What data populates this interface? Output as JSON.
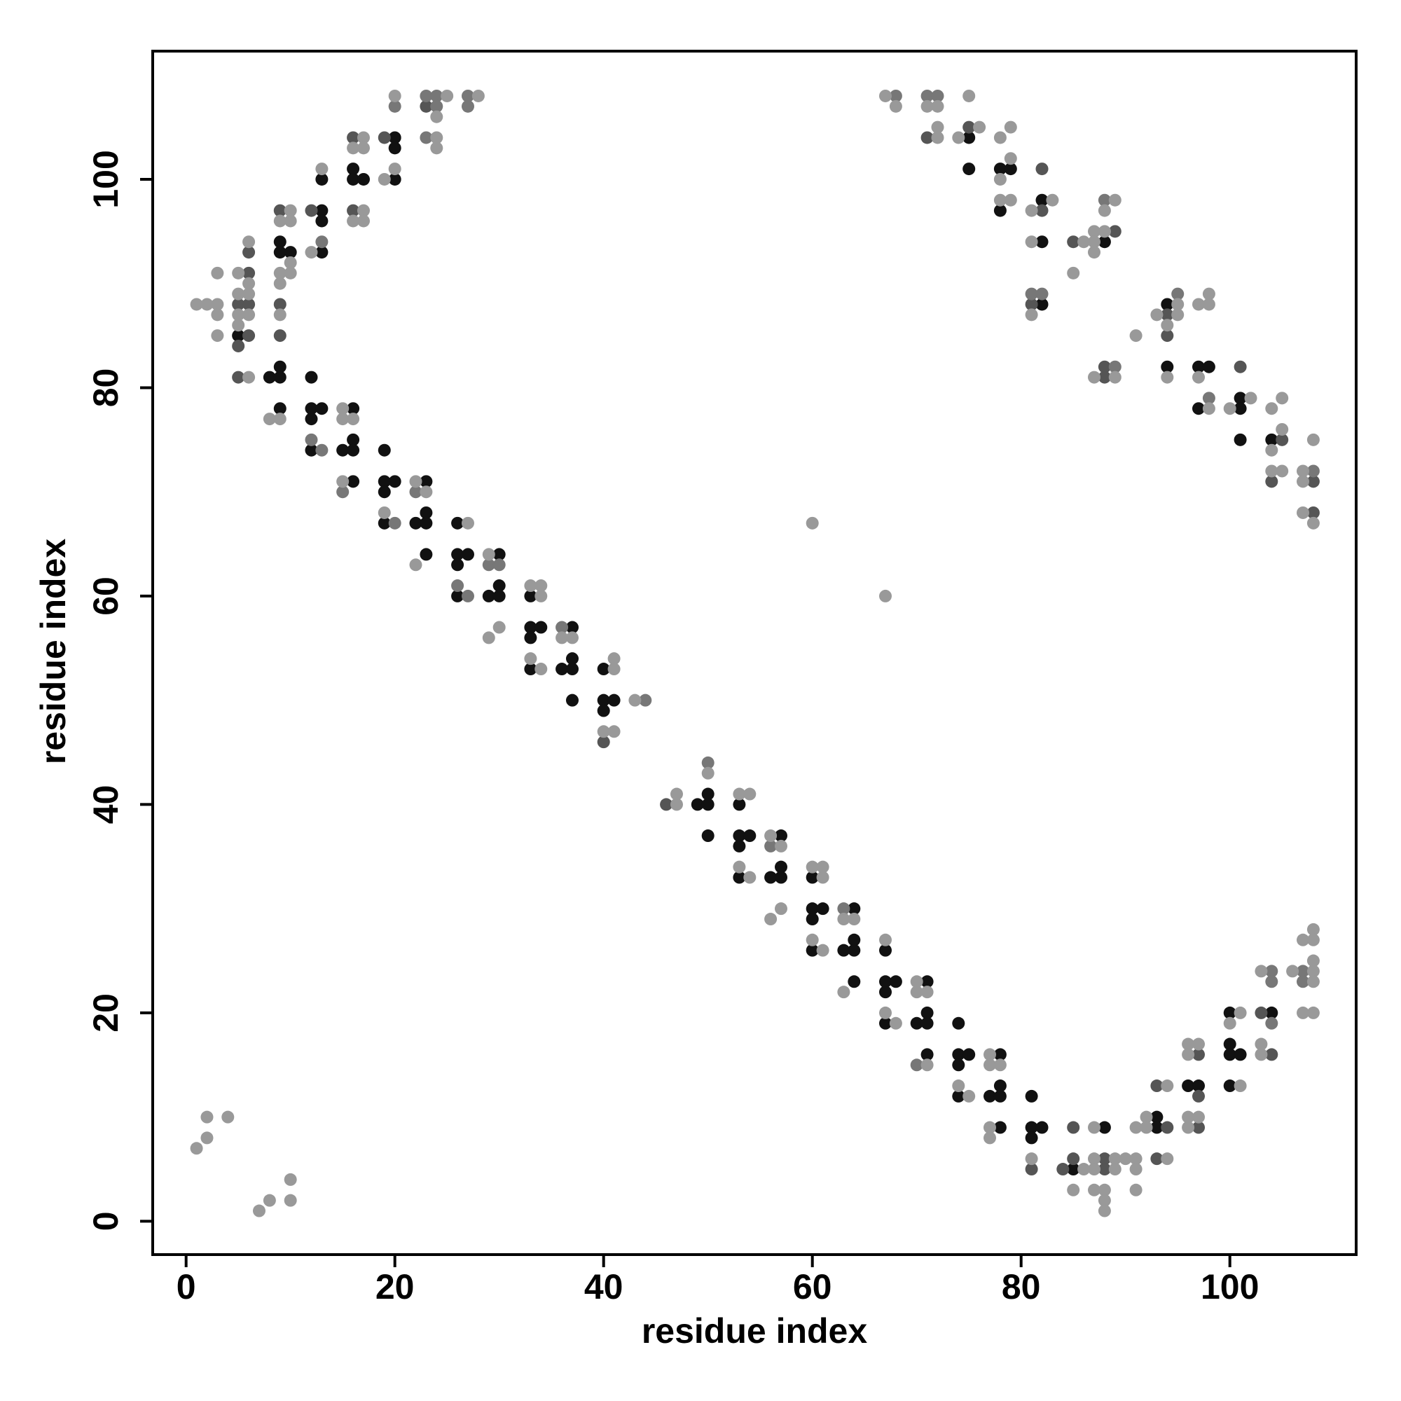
{
  "chart_data": {
    "type": "scatter",
    "x_label": "residue index",
    "y_label": "residue index",
    "xlim": [
      -3.2,
      112.1
    ],
    "ylim": [
      -3.2,
      112.3
    ],
    "xticks": [
      0,
      20,
      40,
      60,
      80,
      100
    ],
    "yticks": [
      0,
      20,
      40,
      60,
      80,
      100
    ],
    "grid": false,
    "series": [
      {
        "color": "#111111",
        "x": [
          5,
          8,
          9,
          9,
          9,
          9,
          9,
          10,
          12,
          12,
          12,
          12,
          13,
          13,
          13,
          13,
          13,
          15,
          16,
          16,
          16,
          16,
          16,
          16,
          17,
          19,
          19,
          19,
          19,
          20,
          20,
          20,
          20,
          22,
          23,
          23,
          23,
          23,
          26,
          26,
          26,
          26,
          27,
          29,
          30,
          30,
          30,
          33,
          33,
          33,
          33,
          34,
          36,
          37,
          37,
          37,
          37,
          40,
          40,
          40,
          41,
          49,
          50,
          50,
          50,
          53,
          53,
          53,
          53,
          54,
          56,
          57,
          57,
          57,
          60,
          60,
          60,
          60,
          61,
          63,
          64,
          64,
          64,
          64,
          67,
          67,
          67,
          67,
          68,
          70,
          71,
          71,
          71,
          71,
          74,
          74,
          74,
          74,
          75,
          75,
          75,
          77,
          78,
          78,
          78,
          78,
          78,
          78,
          79,
          81,
          81,
          81,
          82,
          82,
          82,
          82,
          85,
          88,
          88,
          93,
          93,
          94,
          94,
          96,
          97,
          97,
          97,
          98,
          100,
          100,
          100,
          100,
          101,
          101,
          101,
          101,
          104,
          104
        ],
        "y": [
          85,
          81,
          94,
          93,
          82,
          81,
          78,
          93,
          81,
          78,
          77,
          74,
          100,
          97,
          96,
          93,
          78,
          74,
          101,
          100,
          78,
          75,
          74,
          71,
          100,
          74,
          71,
          70,
          67,
          104,
          103,
          100,
          71,
          67,
          71,
          68,
          67,
          64,
          67,
          64,
          63,
          60,
          64,
          60,
          64,
          61,
          60,
          60,
          57,
          56,
          53,
          57,
          53,
          57,
          54,
          53,
          50,
          53,
          50,
          49,
          50,
          40,
          41,
          40,
          37,
          40,
          37,
          36,
          33,
          37,
          33,
          37,
          34,
          33,
          33,
          30,
          29,
          26,
          30,
          26,
          30,
          27,
          26,
          23,
          26,
          23,
          22,
          19,
          23,
          19,
          23,
          20,
          19,
          16,
          19,
          16,
          15,
          12,
          104,
          101,
          16,
          12,
          101,
          97,
          16,
          13,
          12,
          9,
          101,
          12,
          9,
          8,
          98,
          94,
          88,
          9,
          5,
          94,
          9,
          10,
          9,
          88,
          82,
          13,
          82,
          78,
          13,
          82,
          20,
          17,
          16,
          13,
          79,
          78,
          75,
          16,
          75,
          20
        ]
      },
      {
        "color": "#555555",
        "x": [
          5,
          5,
          5,
          6,
          6,
          6,
          6,
          9,
          9,
          9,
          12,
          16,
          16,
          19,
          23,
          40,
          46,
          71,
          75,
          81,
          81,
          82,
          82,
          84,
          85,
          85,
          85,
          88,
          88,
          88,
          88,
          89,
          93,
          93,
          94,
          94,
          94,
          97,
          97,
          97,
          101,
          103,
          104,
          104,
          105,
          108,
          108
        ],
        "y": [
          88,
          84,
          81,
          93,
          91,
          88,
          85,
          97,
          88,
          85,
          97,
          104,
          97,
          104,
          107,
          46,
          40,
          104,
          105,
          88,
          5,
          101,
          97,
          5,
          94,
          9,
          6,
          82,
          81,
          6,
          5,
          95,
          13,
          6,
          87,
          85,
          9,
          16,
          12,
          9,
          82,
          20,
          71,
          16,
          75,
          71,
          68
        ]
      },
      {
        "color": "#777777",
        "x": [
          12,
          13,
          13,
          15,
          20,
          20,
          22,
          23,
          23,
          24,
          24,
          26,
          27,
          27,
          27,
          29,
          30,
          36,
          44,
          50,
          56,
          63,
          68,
          70,
          71,
          72,
          81,
          82,
          88,
          89,
          95,
          98,
          104,
          104,
          104,
          107,
          107,
          108
        ],
        "y": [
          75,
          94,
          74,
          70,
          107,
          67,
          70,
          108,
          104,
          108,
          107,
          61,
          108,
          107,
          60,
          63,
          63,
          57,
          50,
          44,
          36,
          30,
          108,
          15,
          108,
          108,
          89,
          89,
          98,
          82,
          89,
          79,
          24,
          23,
          19,
          24,
          23,
          72
        ]
      },
      {
        "color": "#999999",
        "x": [
          1,
          1,
          2,
          2,
          2,
          3,
          3,
          3,
          3,
          4,
          5,
          5,
          5,
          5,
          6,
          6,
          6,
          6,
          6,
          7,
          8,
          8,
          9,
          9,
          9,
          9,
          9,
          10,
          10,
          10,
          10,
          10,
          10,
          12,
          13,
          15,
          15,
          15,
          16,
          16,
          16,
          17,
          17,
          17,
          17,
          19,
          19,
          20,
          20,
          22,
          22,
          23,
          24,
          24,
          24,
          25,
          27,
          28,
          29,
          29,
          30,
          33,
          33,
          34,
          34,
          34,
          36,
          37,
          40,
          41,
          41,
          41,
          43,
          47,
          47,
          50,
          53,
          53,
          54,
          54,
          56,
          56,
          57,
          57,
          60,
          60,
          60,
          61,
          61,
          61,
          63,
          63,
          64,
          67,
          67,
          67,
          67,
          68,
          68,
          70,
          70,
          71,
          71,
          71,
          72,
          72,
          72,
          74,
          74,
          75,
          75,
          76,
          77,
          77,
          77,
          77,
          78,
          78,
          78,
          78,
          79,
          79,
          79,
          81,
          81,
          81,
          81,
          83,
          85,
          85,
          86,
          86,
          87,
          87,
          87,
          87,
          87,
          87,
          87,
          87,
          88,
          88,
          88,
          88,
          88,
          89,
          89,
          89,
          89,
          90,
          91,
          91,
          91,
          91,
          91,
          92,
          92,
          93,
          94,
          94,
          94,
          94,
          95,
          95,
          96,
          96,
          96,
          96,
          97,
          97,
          97,
          97,
          98,
          98,
          98,
          100,
          100,
          101,
          101,
          102,
          103,
          103,
          103,
          104,
          104,
          104,
          105,
          105,
          105,
          106,
          107,
          107,
          107,
          107,
          107,
          108,
          108,
          108,
          108,
          108,
          108,
          108,
          108
        ],
        "y": [
          88,
          7,
          88,
          10,
          8,
          91,
          88,
          87,
          85,
          10,
          91,
          89,
          87,
          86,
          94,
          90,
          89,
          87,
          81,
          1,
          77,
          2,
          96,
          91,
          90,
          87,
          77,
          97,
          96,
          92,
          91,
          4,
          2,
          93,
          101,
          78,
          77,
          71,
          103,
          96,
          77,
          104,
          103,
          97,
          96,
          100,
          68,
          108,
          101,
          71,
          63,
          70,
          106,
          104,
          103,
          108,
          67,
          108,
          64,
          56,
          57,
          61,
          54,
          61,
          60,
          53,
          56,
          56,
          47,
          54,
          53,
          47,
          50,
          41,
          40,
          43,
          41,
          34,
          41,
          33,
          37,
          29,
          36,
          30,
          67,
          34,
          27,
          34,
          33,
          26,
          29,
          22,
          29,
          108,
          60,
          27,
          20,
          107,
          19,
          23,
          22,
          107,
          22,
          15,
          107,
          105,
          104,
          104,
          13,
          108,
          12,
          105,
          16,
          15,
          9,
          8,
          104,
          100,
          98,
          15,
          105,
          102,
          98,
          97,
          94,
          87,
          6,
          98,
          91,
          3,
          94,
          5,
          95,
          94,
          93,
          81,
          9,
          6,
          5,
          3,
          97,
          95,
          3,
          2,
          1,
          98,
          81,
          6,
          5,
          6,
          85,
          9,
          6,
          5,
          3,
          10,
          9,
          87,
          86,
          81,
          13,
          6,
          88,
          87,
          17,
          16,
          10,
          9,
          88,
          81,
          17,
          10,
          89,
          88,
          78,
          78,
          19,
          20,
          13,
          79,
          24,
          17,
          16,
          78,
          74,
          72,
          79,
          76,
          72,
          24,
          72,
          71,
          68,
          27,
          20,
          75,
          67,
          28,
          27,
          25,
          24,
          23,
          20
        ]
      }
    ]
  }
}
